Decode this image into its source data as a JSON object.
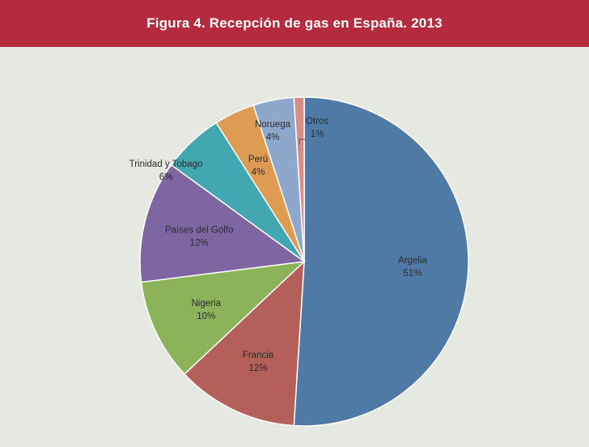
{
  "header": {
    "title": "Figura 4. Recepción de gas en España. 2013"
  },
  "colors": {
    "header_bg": "#b52a3c",
    "background": "#e6e9e1",
    "slices": [
      "#4f7aa6",
      "#b45f5a",
      "#8cb25a",
      "#7e66a2",
      "#41a7b1",
      "#de9b52",
      "#8ea8cb",
      "#d58e8a"
    ]
  },
  "chart_data": {
    "type": "pie",
    "title": "Figura 4. Recepción de gas en España. 2013",
    "slices": [
      {
        "label": "Argelia",
        "value": 51,
        "value_label": "51%"
      },
      {
        "label": "Francia",
        "value": 12,
        "value_label": "12%"
      },
      {
        "label": "Nigeria",
        "value": 10,
        "value_label": "10%"
      },
      {
        "label": "Países del Golfo",
        "value": 12,
        "value_label": "12%"
      },
      {
        "label": "Trinidad y Tobago",
        "value": 6,
        "value_label": "6%"
      },
      {
        "label": "Perú",
        "value": 4,
        "value_label": "4%"
      },
      {
        "label": "Noruega",
        "value": 4,
        "value_label": "4%"
      },
      {
        "label": "Otros",
        "value": 1,
        "value_label": "1%"
      }
    ],
    "start": "top",
    "direction": "clockwise",
    "legend": "none"
  }
}
